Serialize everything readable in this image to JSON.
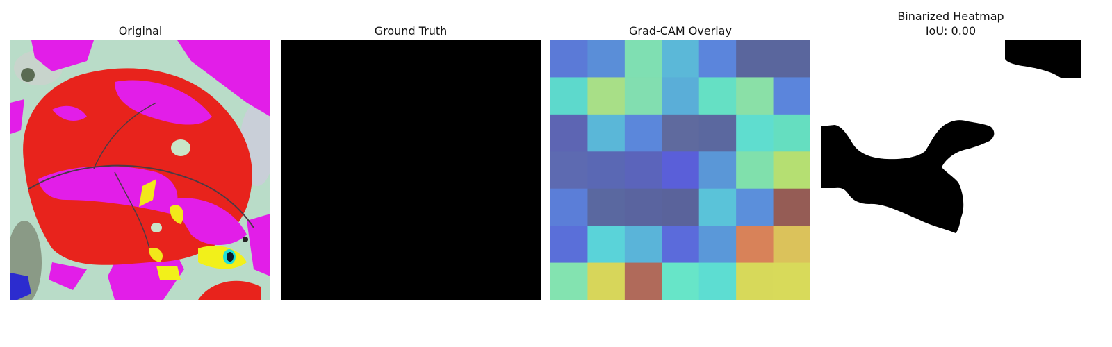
{
  "panels": [
    {
      "title": "Original"
    },
    {
      "title": "Ground Truth"
    },
    {
      "title": "Grad-CAM Overlay"
    },
    {
      "title": "Binarized Heatmap",
      "subtitle": "IoU: 0.00"
    }
  ],
  "colors": {
    "ground_truth_fill": "#000000",
    "binary_foreground": "#000000",
    "binary_background": "#ffffff",
    "leaf_red": "#e8231c",
    "magenta": "#e21ee8",
    "background_green": "#b7dcc6"
  },
  "gradcam_grid": [
    [
      "#5b7ad7",
      "#5a8ed8",
      "#7fdfb2",
      "#5bb8d8",
      "#5b85dc",
      "#5a669d",
      "#5a669d"
    ],
    [
      "#5dd9cc",
      "#a8df87",
      "#82deb0",
      "#5aaed8",
      "#65e0c4",
      "#8ae0a7",
      "#5b85dc"
    ],
    [
      "#5d65b3",
      "#5ab7d8",
      "#5b87db",
      "#5f6a9e",
      "#5b689f",
      "#5fddcf",
      "#65dec0"
    ],
    [
      "#5d6ab1",
      "#5a68b4",
      "#5b64bb",
      "#5a5fd9",
      "#5a97d7",
      "#80e0ac",
      "#b5df72"
    ],
    [
      "#5b7ed8",
      "#5a68a0",
      "#5a649f",
      "#5a639b",
      "#5ac3d9",
      "#5b8fdb",
      "#955c55"
    ],
    [
      "#5a6fd9",
      "#5ad3d9",
      "#5ab4d9",
      "#5b6bdb",
      "#5a98d9",
      "#d88259",
      "#dbc25b"
    ],
    [
      "#83e3b0",
      "#d7d65a",
      "#b06a5a",
      "#67e5c8",
      "#5dddd2",
      "#d7d95a",
      "#d8da5a"
    ]
  ]
}
